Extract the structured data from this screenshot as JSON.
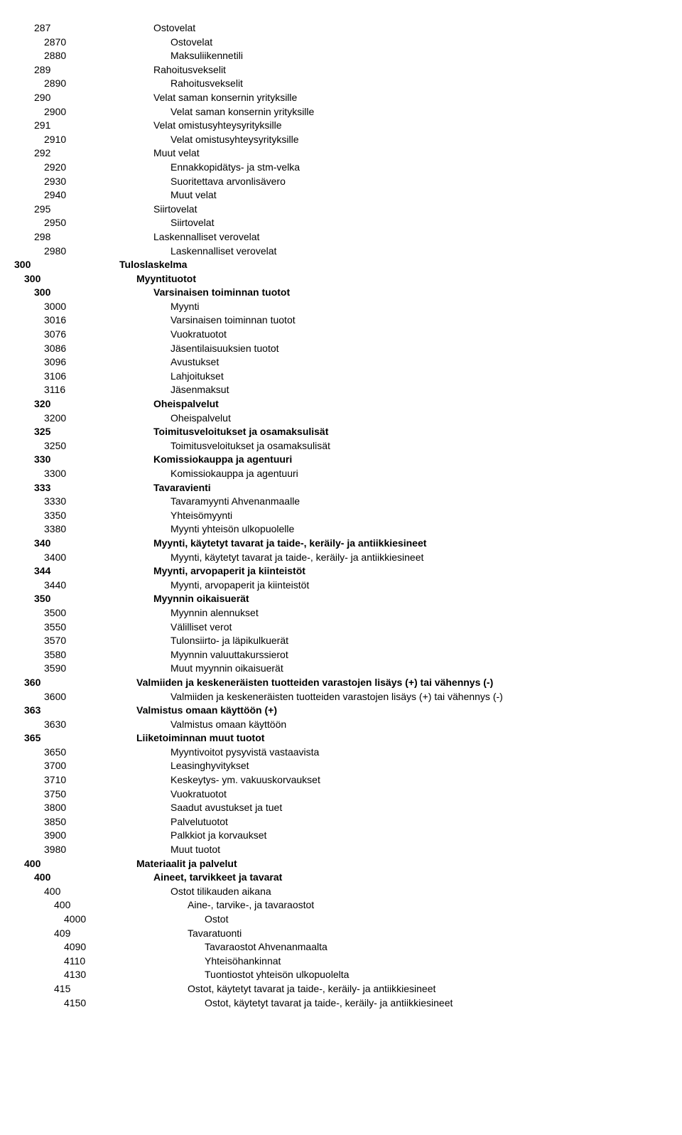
{
  "font": {
    "family": "Arial",
    "size_pt": 10.5,
    "bold_weight": 700
  },
  "colors": {
    "text": "#000000",
    "background": "#ffffff"
  },
  "rows": [
    {
      "code": "287",
      "label": "Ostovelat",
      "code_indent": 2,
      "label_indent": 2,
      "bold": false
    },
    {
      "code": "2870",
      "label": "Ostovelat",
      "code_indent": 3,
      "label_indent": 3,
      "bold": false
    },
    {
      "code": "2880",
      "label": "Maksuliikennetili",
      "code_indent": 3,
      "label_indent": 3,
      "bold": false
    },
    {
      "code": "289",
      "label": "Rahoitusvekselit",
      "code_indent": 2,
      "label_indent": 2,
      "bold": false
    },
    {
      "code": "2890",
      "label": "Rahoitusvekselit",
      "code_indent": 3,
      "label_indent": 3,
      "bold": false
    },
    {
      "code": "290",
      "label": "Velat saman konsernin yrityksille",
      "code_indent": 2,
      "label_indent": 2,
      "bold": false
    },
    {
      "code": "2900",
      "label": "Velat saman konsernin yrityksille",
      "code_indent": 3,
      "label_indent": 3,
      "bold": false
    },
    {
      "code": "291",
      "label": "Velat omistusyhteysyrityksille",
      "code_indent": 2,
      "label_indent": 2,
      "bold": false
    },
    {
      "code": "2910",
      "label": "Velat omistusyhteysyrityksille",
      "code_indent": 3,
      "label_indent": 3,
      "bold": false
    },
    {
      "code": "292",
      "label": "Muut velat",
      "code_indent": 2,
      "label_indent": 2,
      "bold": false
    },
    {
      "code": "2920",
      "label": "Ennakkopidätys- ja stm-velka",
      "code_indent": 3,
      "label_indent": 3,
      "bold": false
    },
    {
      "code": "2930",
      "label": "Suoritettava arvonlisävero",
      "code_indent": 3,
      "label_indent": 3,
      "bold": false
    },
    {
      "code": "2940",
      "label": "Muut velat",
      "code_indent": 3,
      "label_indent": 3,
      "bold": false
    },
    {
      "code": "295",
      "label": "Siirtovelat",
      "code_indent": 2,
      "label_indent": 2,
      "bold": false
    },
    {
      "code": "2950",
      "label": "Siirtovelat",
      "code_indent": 3,
      "label_indent": 3,
      "bold": false
    },
    {
      "code": "298",
      "label": "Laskennalliset verovelat",
      "code_indent": 2,
      "label_indent": 2,
      "bold": false
    },
    {
      "code": "2980",
      "label": "Laskennalliset verovelat",
      "code_indent": 3,
      "label_indent": 3,
      "bold": false
    },
    {
      "code": "300",
      "label": "Tuloslaskelma",
      "code_indent": 0,
      "label_indent": 0,
      "bold": true
    },
    {
      "code": "300",
      "label": "Myyntituotot",
      "code_indent": 1,
      "label_indent": 1,
      "bold": true
    },
    {
      "code": "300",
      "label": "Varsinaisen toiminnan tuotot",
      "code_indent": 2,
      "label_indent": 2,
      "bold": true
    },
    {
      "code": "3000",
      "label": "Myynti",
      "code_indent": 3,
      "label_indent": 3,
      "bold": false
    },
    {
      "code": "3016",
      "label": "Varsinaisen toiminnan tuotot",
      "code_indent": 3,
      "label_indent": 3,
      "bold": false
    },
    {
      "code": "3076",
      "label": "Vuokratuotot",
      "code_indent": 3,
      "label_indent": 3,
      "bold": false
    },
    {
      "code": "3086",
      "label": "Jäsentilaisuuksien tuotot",
      "code_indent": 3,
      "label_indent": 3,
      "bold": false
    },
    {
      "code": "3096",
      "label": "Avustukset",
      "code_indent": 3,
      "label_indent": 3,
      "bold": false
    },
    {
      "code": "3106",
      "label": "Lahjoitukset",
      "code_indent": 3,
      "label_indent": 3,
      "bold": false
    },
    {
      "code": "3116",
      "label": "Jäsenmaksut",
      "code_indent": 3,
      "label_indent": 3,
      "bold": false
    },
    {
      "code": "320",
      "label": "Oheispalvelut",
      "code_indent": 2,
      "label_indent": 2,
      "bold": true
    },
    {
      "code": "3200",
      "label": "Oheispalvelut",
      "code_indent": 3,
      "label_indent": 3,
      "bold": false
    },
    {
      "code": "325",
      "label": "Toimitusveloitukset ja osamaksulisät",
      "code_indent": 2,
      "label_indent": 2,
      "bold": true
    },
    {
      "code": "3250",
      "label": "Toimitusveloitukset ja osamaksulisät",
      "code_indent": 3,
      "label_indent": 3,
      "bold": false
    },
    {
      "code": "330",
      "label": "Komissiokauppa ja agentuuri",
      "code_indent": 2,
      "label_indent": 2,
      "bold": true
    },
    {
      "code": "3300",
      "label": "Komissiokauppa ja agentuuri",
      "code_indent": 3,
      "label_indent": 3,
      "bold": false
    },
    {
      "code": "333",
      "label": "Tavaravienti",
      "code_indent": 2,
      "label_indent": 2,
      "bold": true
    },
    {
      "code": "3330",
      "label": "Tavaramyynti Ahvenanmaalle",
      "code_indent": 3,
      "label_indent": 3,
      "bold": false
    },
    {
      "code": "3350",
      "label": "Yhteisömyynti",
      "code_indent": 3,
      "label_indent": 3,
      "bold": false
    },
    {
      "code": "3380",
      "label": "Myynti yhteisön ulkopuolelle",
      "code_indent": 3,
      "label_indent": 3,
      "bold": false
    },
    {
      "code": "340",
      "label": "Myynti, käytetyt tavarat ja taide-, keräily- ja antiikkiesineet",
      "code_indent": 2,
      "label_indent": 2,
      "bold": true
    },
    {
      "code": "3400",
      "label": "Myynti, käytetyt tavarat ja taide-, keräily- ja antiikkiesineet",
      "code_indent": 3,
      "label_indent": 3,
      "bold": false
    },
    {
      "code": "344",
      "label": "Myynti, arvopaperit ja kiinteistöt",
      "code_indent": 2,
      "label_indent": 2,
      "bold": true
    },
    {
      "code": "3440",
      "label": "Myynti, arvopaperit ja kiinteistöt",
      "code_indent": 3,
      "label_indent": 3,
      "bold": false
    },
    {
      "code": "350",
      "label": "Myynnin oikaisuerät",
      "code_indent": 2,
      "label_indent": 2,
      "bold": true
    },
    {
      "code": "3500",
      "label": "Myynnin alennukset",
      "code_indent": 3,
      "label_indent": 3,
      "bold": false
    },
    {
      "code": "3550",
      "label": "Välilliset verot",
      "code_indent": 3,
      "label_indent": 3,
      "bold": false
    },
    {
      "code": "3570",
      "label": "Tulonsiirto- ja läpikulkuerät",
      "code_indent": 3,
      "label_indent": 3,
      "bold": false
    },
    {
      "code": "3580",
      "label": "Myynnin valuuttakurssierot",
      "code_indent": 3,
      "label_indent": 3,
      "bold": false
    },
    {
      "code": "3590",
      "label": "Muut myynnin oikaisuerät",
      "code_indent": 3,
      "label_indent": 3,
      "bold": false
    },
    {
      "code": "360",
      "label": "Valmiiden ja keskeneräisten tuotteiden varastojen lisäys (+) tai vähennys (-)",
      "code_indent": 1,
      "label_indent": 1,
      "bold": true
    },
    {
      "code": "3600",
      "label": "Valmiiden ja keskeneräisten tuotteiden varastojen lisäys (+) tai vähennys (-)",
      "code_indent": 3,
      "label_indent": 3,
      "bold": false
    },
    {
      "code": "363",
      "label": "Valmistus omaan käyttöön (+)",
      "code_indent": 1,
      "label_indent": 1,
      "bold": true
    },
    {
      "code": "3630",
      "label": "Valmistus omaan käyttöön",
      "code_indent": 3,
      "label_indent": 3,
      "bold": false
    },
    {
      "code": "365",
      "label": "Liiketoiminnan muut tuotot",
      "code_indent": 1,
      "label_indent": 1,
      "bold": true
    },
    {
      "code": "3650",
      "label": "Myyntivoitot pysyvistä vastaavista",
      "code_indent": 3,
      "label_indent": 3,
      "bold": false
    },
    {
      "code": "3700",
      "label": "Leasinghyvitykset",
      "code_indent": 3,
      "label_indent": 3,
      "bold": false
    },
    {
      "code": "3710",
      "label": "Keskeytys- ym. vakuuskorvaukset",
      "code_indent": 3,
      "label_indent": 3,
      "bold": false
    },
    {
      "code": "3750",
      "label": "Vuokratuotot",
      "code_indent": 3,
      "label_indent": 3,
      "bold": false
    },
    {
      "code": "3800",
      "label": "Saadut avustukset ja tuet",
      "code_indent": 3,
      "label_indent": 3,
      "bold": false
    },
    {
      "code": "3850",
      "label": "Palvelutuotot",
      "code_indent": 3,
      "label_indent": 3,
      "bold": false
    },
    {
      "code": "3900",
      "label": "Palkkiot ja korvaukset",
      "code_indent": 3,
      "label_indent": 3,
      "bold": false
    },
    {
      "code": "3980",
      "label": "Muut tuotot",
      "code_indent": 3,
      "label_indent": 3,
      "bold": false
    },
    {
      "code": "400",
      "label": "Materiaalit ja palvelut",
      "code_indent": 1,
      "label_indent": 1,
      "bold": true
    },
    {
      "code": "400",
      "label": "Aineet, tarvikkeet ja tavarat",
      "code_indent": 2,
      "label_indent": 2,
      "bold": true
    },
    {
      "code": "400",
      "label": "Ostot tilikauden aikana",
      "code_indent": 3,
      "label_indent": 3,
      "bold": false
    },
    {
      "code": "400",
      "label": "Aine-, tarvike-, ja tavaraostot",
      "code_indent": 4,
      "label_indent": 4,
      "bold": false
    },
    {
      "code": "4000",
      "label": "Ostot",
      "code_indent": 5,
      "label_indent": 5,
      "bold": false
    },
    {
      "code": "409",
      "label": "Tavaratuonti",
      "code_indent": 4,
      "label_indent": 4,
      "bold": false
    },
    {
      "code": "4090",
      "label": "Tavaraostot Ahvenanmaalta",
      "code_indent": 5,
      "label_indent": 5,
      "bold": false
    },
    {
      "code": "4110",
      "label": "Yhteisöhankinnat",
      "code_indent": 5,
      "label_indent": 5,
      "bold": false
    },
    {
      "code": "4130",
      "label": "Tuontiostot yhteisön ulkopuolelta",
      "code_indent": 5,
      "label_indent": 5,
      "bold": false
    },
    {
      "code": "415",
      "label": "Ostot, käytetyt tavarat ja taide-, keräily- ja antiikkiesineet",
      "code_indent": 4,
      "label_indent": 4,
      "bold": false
    },
    {
      "code": "4150",
      "label": "Ostot, käytetyt tavarat ja taide-, keräily- ja antiikkiesineet",
      "code_indent": 5,
      "label_indent": 5,
      "bold": false
    }
  ]
}
